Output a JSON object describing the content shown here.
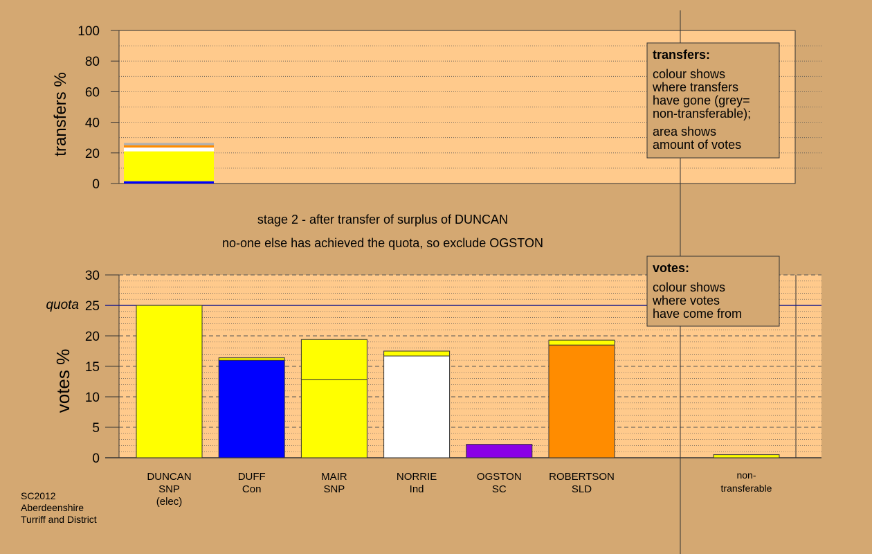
{
  "colors": {
    "background": "#d4a872",
    "plot_area": "#ffca8c",
    "quota_line": "#1c1c8c",
    "yellow": "#ffff00",
    "blue": "#0000ff",
    "white": "#ffffff",
    "purple": "#8a00e6",
    "orange": "#ff8c00",
    "grey": "#b0b0b0"
  },
  "chart_data": [
    {
      "type": "bar",
      "panel": "transfers",
      "ylabel": "transfers %",
      "ylim": [
        0,
        100
      ],
      "yticks": [
        "0",
        "20",
        "40",
        "60",
        "80",
        "100"
      ],
      "segments": [
        {
          "color": "#0000ff",
          "from": 0,
          "to": 1.5
        },
        {
          "color": "#ffff00",
          "from": 1.5,
          "to": 21
        },
        {
          "color": "#ffffff",
          "from": 21,
          "to": 23.5
        },
        {
          "color": "#ff8c00",
          "from": 23.5,
          "to": 25
        },
        {
          "color": "#b0b0b0",
          "from": 25,
          "to": 26.5
        }
      ],
      "legend": {
        "title": "transfers:",
        "lines1": [
          "colour shows",
          "where transfers",
          "have gone (grey=",
          "non-transferable);"
        ],
        "lines2": [
          "area shows",
          "amount of votes"
        ]
      }
    },
    {
      "type": "bar",
      "panel": "votes",
      "ylabel": "votes %",
      "ylim": [
        0,
        30
      ],
      "yticks": [
        "0",
        "5",
        "10",
        "15",
        "20",
        "25",
        "30"
      ],
      "quota": 25,
      "quota_label": "quota",
      "categories": [
        [
          "DUNCAN",
          "SNP",
          "(elec)"
        ],
        [
          "DUFF",
          "Con"
        ],
        [
          "MAIR",
          "SNP"
        ],
        [
          "NORRIE",
          "Ind"
        ],
        [
          "OGSTON",
          "SC"
        ],
        [
          "ROBERTSON",
          "SLD"
        ]
      ],
      "bars": [
        [
          {
            "color": "#ffff00",
            "from": 0,
            "to": 25
          }
        ],
        [
          {
            "color": "#0000ff",
            "from": 0,
            "to": 16
          },
          {
            "color": "#ffff00",
            "from": 16,
            "to": 16.4
          }
        ],
        [
          {
            "color": "#ffff00",
            "from": 0,
            "to": 12.8
          },
          {
            "color": "#ffff00",
            "from": 12.8,
            "to": 19.4
          }
        ],
        [
          {
            "color": "#ffffff",
            "from": 0,
            "to": 16.7
          },
          {
            "color": "#ffff00",
            "from": 16.7,
            "to": 17.5
          }
        ],
        [
          {
            "color": "#8a00e6",
            "from": 0,
            "to": 2.2
          }
        ],
        [
          {
            "color": "#ff8c00",
            "from": 0,
            "to": 18.5
          },
          {
            "color": "#ffff00",
            "from": 18.5,
            "to": 19.3
          }
        ]
      ],
      "nontransferable": {
        "label": [
          "non-",
          "transferable"
        ],
        "segments": [
          {
            "color": "#ffff00",
            "from": 0,
            "to": 0.5
          }
        ]
      },
      "legend": {
        "title": "votes:",
        "lines": [
          "colour shows",
          "where votes",
          "have come from"
        ]
      }
    }
  ],
  "stage_text": "stage 2 - after transfer of surplus of DUNCAN",
  "stage_subtext": "no-one else has achieved the quota, so exclude OGSTON",
  "footer": [
    "SC2012",
    "Aberdeenshire",
    "Turriff and District"
  ]
}
